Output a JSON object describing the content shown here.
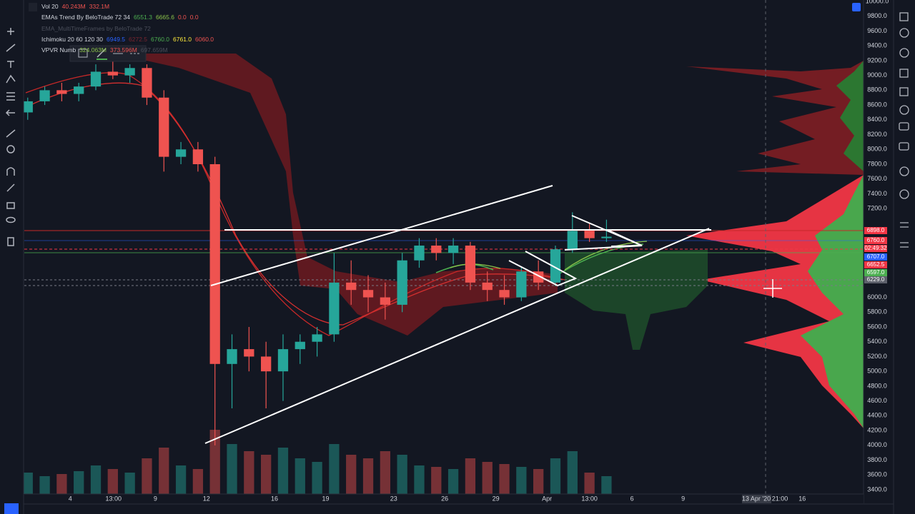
{
  "chart_data": {
    "type": "candlestick",
    "legend": [
      [
        {
          "text": "Vol 20",
          "color": "#d1d4dc"
        },
        {
          "text": "40.243M",
          "color": "#ef5350"
        },
        {
          "text": "332.1M",
          "color": "#ef5350"
        }
      ],
      [
        {
          "text": "EMAs Trend By BeloTrade 72 34",
          "color": "#d1d4dc"
        },
        {
          "text": "6551.3",
          "color": "#4caf50"
        },
        {
          "text": "6665.6",
          "color": "#8bc34a"
        },
        {
          "text": "0.0",
          "color": "#ef5350"
        },
        {
          "text": "0.0",
          "color": "#ef5350"
        }
      ],
      [
        {
          "text": "EMA_MultiTimeFrames by BeloTrade 72",
          "color": "#4a4e5a"
        }
      ],
      [
        {
          "text": "Ichimoku 20 60 120 30",
          "color": "#d1d4dc"
        },
        {
          "text": "6949.5",
          "color": "#2962ff"
        },
        {
          "text": "6272.5",
          "color": "#7a2530"
        },
        {
          "text": "6760.0",
          "color": "#4caf50"
        },
        {
          "text": "6761.0",
          "color": "#ffeb3b"
        },
        {
          "text": "6060.0",
          "color": "#ef5350"
        }
      ],
      [
        {
          "text": "VPVR Numb",
          "color": "#d1d4dc"
        },
        {
          "text": "324.063M",
          "color": "#8bc34a"
        },
        {
          "text": "373.596M",
          "color": "#ef5350"
        },
        {
          "text": "697.659M",
          "color": "#4a4e5a"
        }
      ]
    ],
    "xlim": [
      1.3,
      50.6
    ],
    "xticks": [
      4,
      {
        "value": 6.54,
        "label": "13:00"
      },
      9,
      12,
      16,
      19,
      23,
      26,
      29,
      {
        "value": 32,
        "label": "Apr"
      },
      {
        "value": 34.5,
        "label": "13:00"
      },
      {
        "value": 37,
        "label": "6"
      },
      {
        "value": 40,
        "label": "9"
      },
      {
        "value": 47,
        "label": "16"
      }
    ],
    "ylim": [
      3400,
      10000
    ],
    "yticks": [
      {
        "value": 3400,
        "label": "3400.0"
      },
      {
        "value": 3600,
        "label": "3600.0"
      },
      {
        "value": 3800,
        "label": "3800.0"
      },
      {
        "value": 4000,
        "label": "4000.0"
      },
      {
        "value": 4200,
        "label": "4200.0"
      },
      {
        "value": 4400,
        "label": "4400.0"
      },
      {
        "value": 4600,
        "label": "4600.0"
      },
      {
        "value": 4800,
        "label": "4800.0"
      },
      {
        "value": 5000,
        "label": "5000.0"
      },
      {
        "value": 5200,
        "label": "5200.0"
      },
      {
        "value": 5400,
        "label": "5400.0"
      },
      {
        "value": 5600,
        "label": "5600.0"
      },
      {
        "value": 5800,
        "label": "5800.0"
      },
      {
        "value": 6000,
        "label": "6000.0"
      },
      {
        "value": 7200,
        "label": "7200.0"
      },
      {
        "value": 7400,
        "label": "7400.0"
      },
      {
        "value": 7600,
        "label": "7600.0"
      },
      {
        "value": 7800,
        "label": "7800.0"
      },
      {
        "value": 8000,
        "label": "8000.0"
      },
      {
        "value": 8200,
        "label": "8200.0"
      },
      {
        "value": 8400,
        "label": "8400.0"
      },
      {
        "value": 8600,
        "label": "8600.0"
      },
      {
        "value": 8800,
        "label": "8800.0"
      },
      {
        "value": 9000,
        "label": "9000.0"
      },
      {
        "value": 9200,
        "label": "9200.0"
      },
      {
        "value": 9400,
        "label": "9400.0"
      },
      {
        "value": 9600,
        "label": "9600.0"
      },
      {
        "value": 9800,
        "label": "9800.0"
      },
      {
        "value": 10000,
        "label": "10000.0"
      }
    ],
    "grid": false,
    "x": [
      1.5,
      2.5,
      3.5,
      4.5,
      5.5,
      6.5,
      7.5,
      8.5,
      9.5,
      10.5,
      11.5,
      12.5,
      13.5,
      14.5,
      15.5,
      16.5,
      17.5,
      18.5,
      19.5,
      20.5,
      21.5,
      22.5,
      23.5,
      24.5,
      25.5,
      26.5,
      27.5,
      28.5,
      29.5,
      30.5,
      31.5,
      32.5,
      33.5,
      34.5,
      35.5
    ],
    "open": [
      8500,
      8650,
      8800,
      8750,
      8850,
      9050,
      9000,
      9100,
      8700,
      7900,
      8000,
      7800,
      5100,
      5300,
      5200,
      5000,
      5300,
      5400,
      5500,
      6200,
      6100,
      6000,
      5900,
      6500,
      6700,
      6600,
      6700,
      6200,
      6100,
      6000,
      6350,
      6200,
      6650,
      6900,
      6800
    ],
    "high": [
      8700,
      8850,
      8900,
      8900,
      9150,
      9200,
      9150,
      9150,
      8800,
      8100,
      8100,
      7900,
      5500,
      5600,
      5400,
      5500,
      5500,
      5600,
      6600,
      6500,
      6300,
      6200,
      6600,
      6800,
      6800,
      6800,
      6750,
      6350,
      6300,
      6400,
      6500,
      6700,
      7150,
      7000,
      7050
    ],
    "low": [
      8400,
      8600,
      8650,
      8650,
      8800,
      8950,
      8900,
      8600,
      7700,
      7800,
      7700,
      4000,
      4500,
      5000,
      4500,
      4600,
      5100,
      5200,
      5400,
      5900,
      5800,
      5700,
      5800,
      6400,
      6500,
      6450,
      6100,
      5950,
      5900,
      5950,
      6100,
      6150,
      6600,
      6750,
      6750
    ],
    "close": [
      8650,
      8800,
      8750,
      8850,
      9050,
      9000,
      9100,
      8700,
      7900,
      8000,
      7800,
      5100,
      5300,
      5200,
      5000,
      5300,
      5400,
      5500,
      6200,
      6100,
      6000,
      5900,
      6500,
      6700,
      6600,
      6700,
      6200,
      6100,
      6000,
      6350,
      6200,
      6650,
      6900,
      6800,
      6820
    ],
    "volume": [
      300,
      250,
      280,
      320,
      400,
      350,
      300,
      500,
      650,
      400,
      350,
      900,
      700,
      600,
      550,
      650,
      500,
      450,
      700,
      550,
      500,
      600,
      550,
      400,
      380,
      350,
      500,
      450,
      420,
      380,
      350,
      500,
      600,
      300,
      250
    ],
    "volume_lim": [
      0,
      1000
    ],
    "up_color": "#26a69a",
    "down_color": "#ef5350",
    "price_labels": [
      {
        "text": "6898.0",
        "color": "#f23645"
      },
      {
        "text": "6760.0",
        "color": "#f23645"
      },
      {
        "text": "02:49:32",
        "color": "#f23645"
      },
      {
        "text": "6707.0",
        "color": "#2962ff"
      },
      {
        "text": "6652.5",
        "color": "#f23645"
      },
      {
        "text": "6597.0",
        "color": "#4caf50"
      },
      {
        "text": "6229.0",
        "color": "#5d606b"
      }
    ],
    "crosshair_labels": [
      "13 Apr '20",
      "21:00"
    ]
  }
}
